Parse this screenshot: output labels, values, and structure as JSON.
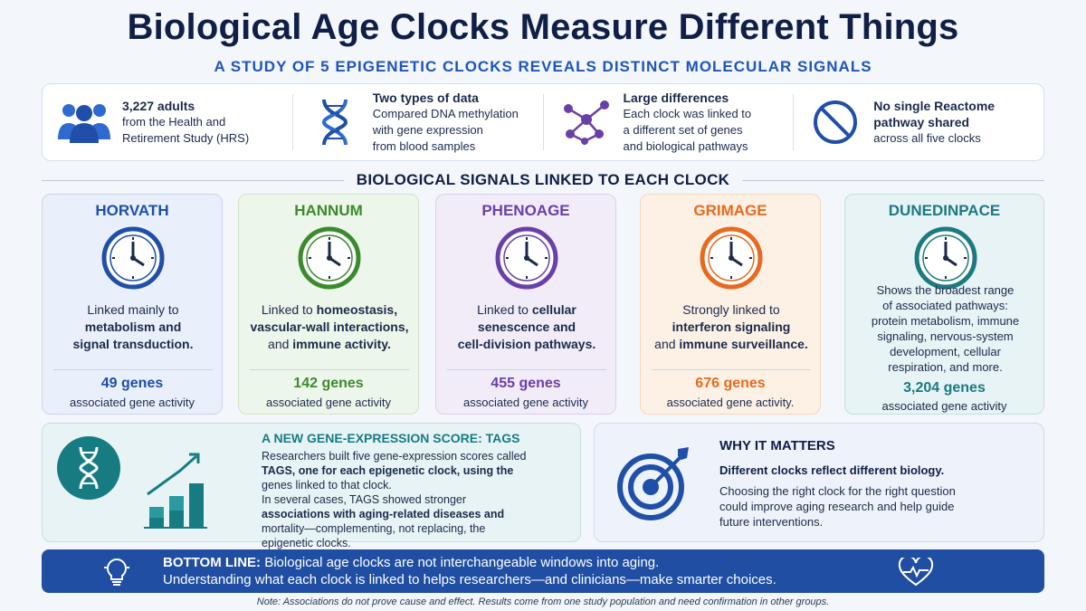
{
  "title": "Biological Age Clocks Measure Different Things",
  "subtitle": "A STUDY OF 5 EPIGENETIC CLOCKS REVEALS DISTINCT MOLECULAR SIGNALS",
  "stats": [
    {
      "icon": "people-icon",
      "head": "3,227 adults",
      "lines": [
        "from the Health and",
        "Retirement Study (HRS)"
      ]
    },
    {
      "icon": "dna-icon",
      "head": "Two types of data",
      "lines": [
        "Compared DNA methylation",
        "with gene expression",
        "from blood samples"
      ]
    },
    {
      "icon": "network-icon",
      "head": "Large differences",
      "lines": [
        "Each clock was linked to",
        "a different set of genes",
        "and biological pathways"
      ]
    },
    {
      "icon": "no-sign-icon",
      "head": "No single Reactome",
      "head2": "pathway shared",
      "lines": [
        "across all five clocks"
      ]
    }
  ],
  "section_title": "BIOLOGICAL SIGNALS LINKED TO EACH CLOCK",
  "clocks": [
    {
      "name": "HORVATH",
      "color": "#1f4fa8",
      "bg": "#eaf0fb",
      "border": "#c8d6ef",
      "desc": [
        "Linked mainly to",
        "metabolism and",
        "signal transduction."
      ],
      "genes": "49 genes",
      "genes_sub": "associated gene activity"
    },
    {
      "name": "HANNUM",
      "color": "#3c8a2e",
      "bg": "#edf6ea",
      "border": "#cfe4c8",
      "desc": [
        "Linked to homeostasis,",
        "vascular-wall interactions,",
        "and immune activity."
      ],
      "genes": "142 genes",
      "genes_sub": "associated gene activity"
    },
    {
      "name": "PHENOAGE",
      "color": "#6b3fa8",
      "bg": "#f1ecf8",
      "border": "#dccfee",
      "desc": [
        "Linked to cellular",
        "senescence and",
        "cell-division pathways."
      ],
      "genes": "455 genes",
      "genes_sub": "associated gene activity"
    },
    {
      "name": "GRIMAGE",
      "color": "#e66b1f",
      "bg": "#fdf1e6",
      "border": "#f4d7bd",
      "desc": [
        "Strongly linked to",
        "interferon signaling",
        "and immune surveillance."
      ],
      "genes": "676 genes",
      "genes_sub": "associated gene activity."
    },
    {
      "name": "DUNEDINPACE",
      "color": "#1c7a80",
      "bg": "#e7f3f4",
      "border": "#c5dfe2",
      "desc": [
        "Shows the broadest range",
        "of associated pathways:",
        "protein metabolism, immune",
        "signaling, nervous-system",
        "development, cellular",
        "respiration, and more."
      ],
      "genes": "3,204 genes",
      "genes_sub": "associated gene activity"
    }
  ],
  "tags": {
    "title": "A NEW GENE-EXPRESSION SCORE: TAGS",
    "body": [
      "Researchers built five gene-expression scores called",
      "TAGS, one for each epigenetic clock, using the",
      "genes linked to that clock.",
      "In several cases, TAGS showed stronger",
      "associations with aging-related diseases and",
      "mortality—complementing, not replacing, the",
      "epigenetic clocks."
    ],
    "chart_icon": "rising-bar-chart-icon"
  },
  "why": {
    "title": "WHY IT MATTERS",
    "subtitle": "Different clocks reflect different biology.",
    "body": [
      "Choosing the right clock for the right question",
      "could improve aging research and help guide",
      "future interventions."
    ],
    "icon": "target-arrow-icon"
  },
  "bottom": {
    "label": "BOTTOM LINE:",
    "line1": " Biological age clocks are not interchangeable windows into aging.",
    "line2": "Understanding what each clock is linked to helps researchers—and clinicians—make smarter choices.",
    "icons": [
      "lightbulb-icon",
      "heart-pulse-icon"
    ]
  },
  "note": "Note: Associations do not prove cause and effect. Results come from one study population and need confirmation in other groups.",
  "colors": {
    "navy": "#0f1f45",
    "blue": "#1f55b8",
    "teal": "#167c82",
    "banner": "#1f4ea3"
  }
}
